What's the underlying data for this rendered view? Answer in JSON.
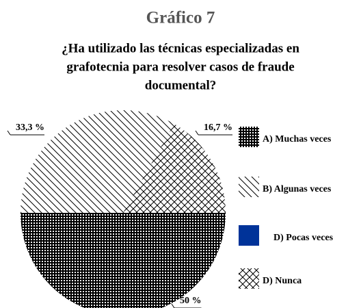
{
  "chart_data": {
    "type": "pie",
    "title": "Gráfico 7",
    "subtitle": [
      "¿Ha utilizado las técnicas especializadas en",
      "grafotecnia para resolver casos de fraude",
      "documental?"
    ],
    "categories": [
      "A) Muchas veces",
      "B) Algunas veces",
      "D) Pocas veces",
      "D) Nunca"
    ],
    "values": [
      50,
      33.3,
      0,
      16.7
    ],
    "value_labels": [
      "50 %",
      "33,3 %",
      null,
      "16,7 %"
    ],
    "colors": [
      "#000000",
      "#000000",
      "#003399",
      "#000000"
    ],
    "patterns": [
      "grid",
      "diagonal",
      "solid",
      "crosshatch"
    ]
  }
}
